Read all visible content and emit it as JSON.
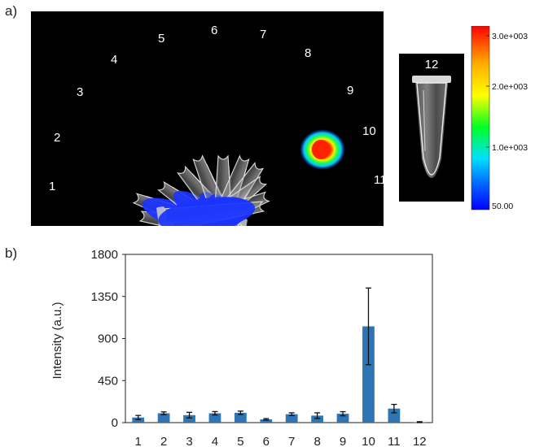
{
  "panels": {
    "a": "a)",
    "b": "b)"
  },
  "imaging": {
    "tube_labels": [
      "1",
      "2",
      "3",
      "4",
      "5",
      "6",
      "7",
      "8",
      "9",
      "10",
      "11"
    ],
    "single_tube_label": "12",
    "colorbar_ticks": [
      "3.0e+003",
      "2.0e+003",
      "1.0e+003",
      "50.00"
    ],
    "colors": {
      "low": "#0000ff",
      "mid": "#00ff00",
      "high": "#ff0000",
      "background": "#000000"
    }
  },
  "chart_data": {
    "type": "bar",
    "categories": [
      "1",
      "2",
      "3",
      "4",
      "5",
      "6",
      "7",
      "8",
      "9",
      "10",
      "11",
      "12"
    ],
    "values": [
      55,
      100,
      80,
      100,
      105,
      35,
      90,
      75,
      95,
      1030,
      150,
      5
    ],
    "errors": [
      22,
      15,
      30,
      18,
      18,
      8,
      15,
      30,
      22,
      410,
      45,
      5
    ],
    "title": "",
    "xlabel": "",
    "ylabel": "Intensity (a.u.)",
    "ylim": [
      0,
      1800
    ],
    "yticks": [
      0,
      450,
      900,
      1350,
      1800
    ],
    "grid": false,
    "legend": "none",
    "bar_color": "#2e75b6"
  }
}
